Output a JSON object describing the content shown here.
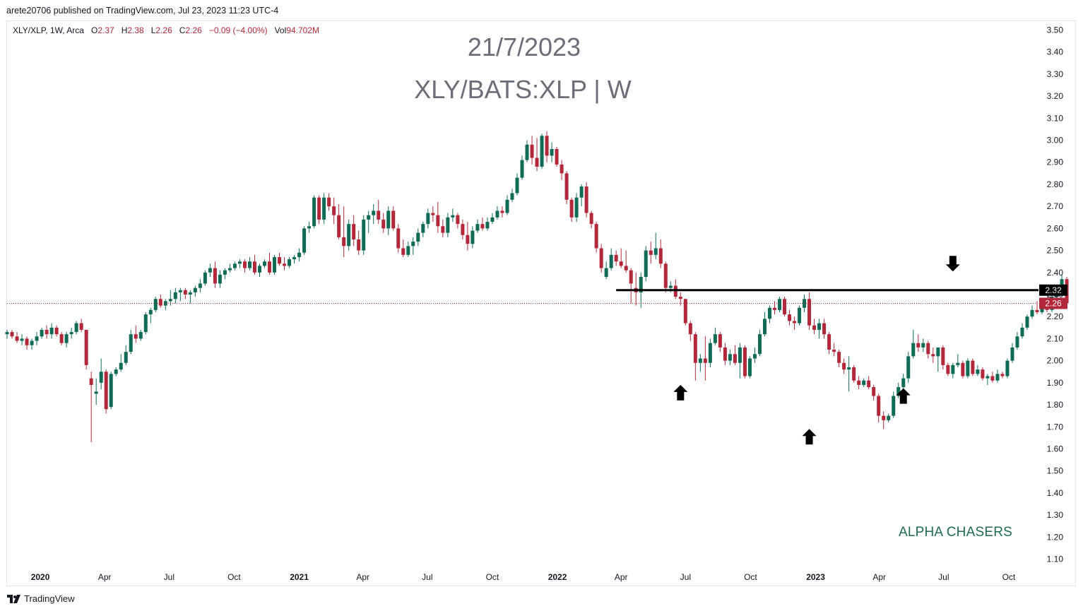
{
  "publisher_line": "arete20706 published on TradingView.com, Jul 23, 2023 11:23 UTC-4",
  "legend": {
    "symbol": "XLY/XLP, 1W, Arca",
    "o_label": "O",
    "o_value": "2.37",
    "h_label": "H",
    "h_value": "2.38",
    "l_label": "L",
    "l_value": "2.26",
    "c_label": "C",
    "c_value": "2.26",
    "change": "−0.09 (−4.00%)",
    "vol_label": "Vol",
    "vol_value": "94.702M"
  },
  "watermark": {
    "date": "21/7/2023",
    "title": "XLY/BATS:XLP | W"
  },
  "annotation_text": "ALPHA CHASERS",
  "footer": {
    "brand": "TradingView",
    "logo_icon": "tradingview-logo-icon"
  },
  "colors": {
    "up": "#0f6b56",
    "down": "#b2283a",
    "axis_text": "#131722",
    "level_line": "#000000"
  },
  "chart_data": {
    "type": "candlestick",
    "interval": "1W",
    "y_axis": {
      "ticks": [
        "1.10",
        "1.20",
        "1.30",
        "1.40",
        "1.50",
        "1.60",
        "1.70",
        "1.80",
        "1.90",
        "2.00",
        "2.10",
        "2.20",
        "2.30",
        "2.40",
        "2.50",
        "2.60",
        "2.70",
        "2.80",
        "2.90",
        "3.00",
        "3.10",
        "3.20",
        "3.30",
        "3.40",
        "3.50"
      ],
      "range": [
        1.06,
        3.54
      ],
      "position": "right"
    },
    "x_axis": {
      "range": [
        "2019-11-15",
        "2023-11-10"
      ],
      "ticks": [
        {
          "label": "2020",
          "date": "2020-01-01",
          "bold": true
        },
        {
          "label": "Apr",
          "date": "2020-04-01",
          "bold": false
        },
        {
          "label": "Jul",
          "date": "2020-07-01",
          "bold": false
        },
        {
          "label": "Oct",
          "date": "2020-10-01",
          "bold": false
        },
        {
          "label": "2021",
          "date": "2021-01-01",
          "bold": true
        },
        {
          "label": "Apr",
          "date": "2021-04-01",
          "bold": false
        },
        {
          "label": "Jul",
          "date": "2021-07-01",
          "bold": false
        },
        {
          "label": "Oct",
          "date": "2021-10-01",
          "bold": false
        },
        {
          "label": "2022",
          "date": "2022-01-01",
          "bold": true
        },
        {
          "label": "Apr",
          "date": "2022-04-01",
          "bold": false
        },
        {
          "label": "Jul",
          "date": "2022-07-01",
          "bold": false
        },
        {
          "label": "Oct",
          "date": "2022-10-01",
          "bold": false
        },
        {
          "label": "2023",
          "date": "2023-01-01",
          "bold": true
        },
        {
          "label": "Apr",
          "date": "2023-04-01",
          "bold": false
        },
        {
          "label": "Jul",
          "date": "2023-07-01",
          "bold": false
        },
        {
          "label": "Oct",
          "date": "2023-10-01",
          "bold": false
        }
      ]
    },
    "start_week": "2019-11-15",
    "candles": [
      [
        2.12,
        2.14,
        2.1,
        2.13
      ],
      [
        2.13,
        2.14,
        2.1,
        2.11
      ],
      [
        2.11,
        2.13,
        2.08,
        2.09
      ],
      [
        2.09,
        2.12,
        2.07,
        2.1
      ],
      [
        2.1,
        2.11,
        2.05,
        2.07
      ],
      [
        2.07,
        2.1,
        2.05,
        2.09
      ],
      [
        2.09,
        2.13,
        2.07,
        2.11
      ],
      [
        2.11,
        2.15,
        2.1,
        2.14
      ],
      [
        2.14,
        2.16,
        2.1,
        2.12
      ],
      [
        2.12,
        2.17,
        2.1,
        2.15
      ],
      [
        2.15,
        2.16,
        2.11,
        2.12
      ],
      [
        2.12,
        2.13,
        2.07,
        2.08
      ],
      [
        2.08,
        2.13,
        2.06,
        2.12
      ],
      [
        2.12,
        2.15,
        2.1,
        2.13
      ],
      [
        2.13,
        2.18,
        2.12,
        2.17
      ],
      [
        2.17,
        2.19,
        2.13,
        2.14
      ],
      [
        2.14,
        2.14,
        1.96,
        1.98
      ],
      [
        1.92,
        1.95,
        1.63,
        1.89
      ],
      [
        1.85,
        1.92,
        1.8,
        1.86
      ],
      [
        1.9,
        2.01,
        1.87,
        1.95
      ],
      [
        1.95,
        1.96,
        1.76,
        1.78
      ],
      [
        1.79,
        1.95,
        1.78,
        1.94
      ],
      [
        1.94,
        1.97,
        1.93,
        1.96
      ],
      [
        1.96,
        2.03,
        1.95,
        1.99
      ],
      [
        1.99,
        2.07,
        1.98,
        2.04
      ],
      [
        2.04,
        2.14,
        2.03,
        2.12
      ],
      [
        2.12,
        2.16,
        2.08,
        2.1
      ],
      [
        2.1,
        2.14,
        2.09,
        2.13
      ],
      [
        2.13,
        2.22,
        2.12,
        2.21
      ],
      [
        2.21,
        2.24,
        2.17,
        2.23
      ],
      [
        2.23,
        2.29,
        2.22,
        2.28
      ],
      [
        2.28,
        2.3,
        2.24,
        2.25
      ],
      [
        2.25,
        2.28,
        2.23,
        2.27
      ],
      [
        2.27,
        2.32,
        2.25,
        2.28
      ],
      [
        2.28,
        2.33,
        2.26,
        2.31
      ],
      [
        2.31,
        2.33,
        2.27,
        2.32
      ],
      [
        2.32,
        2.33,
        2.28,
        2.3
      ],
      [
        2.3,
        2.32,
        2.26,
        2.31
      ],
      [
        2.31,
        2.34,
        2.29,
        2.33
      ],
      [
        2.33,
        2.37,
        2.31,
        2.35
      ],
      [
        2.35,
        2.41,
        2.34,
        2.4
      ],
      [
        2.4,
        2.44,
        2.38,
        2.42
      ],
      [
        2.42,
        2.45,
        2.33,
        2.35
      ],
      [
        2.35,
        2.41,
        2.33,
        2.39
      ],
      [
        2.39,
        2.42,
        2.37,
        2.41
      ],
      [
        2.41,
        2.44,
        2.4,
        2.42
      ],
      [
        2.42,
        2.45,
        2.41,
        2.44
      ],
      [
        2.44,
        2.46,
        2.42,
        2.45
      ],
      [
        2.45,
        2.46,
        2.4,
        2.42
      ],
      [
        2.42,
        2.47,
        2.41,
        2.45
      ],
      [
        2.45,
        2.48,
        2.39,
        2.4
      ],
      [
        2.4,
        2.44,
        2.38,
        2.43
      ],
      [
        2.43,
        2.46,
        2.42,
        2.45
      ],
      [
        2.45,
        2.49,
        2.39,
        2.4
      ],
      [
        2.4,
        2.48,
        2.39,
        2.47
      ],
      [
        2.47,
        2.49,
        2.43,
        2.44
      ],
      [
        2.44,
        2.47,
        2.41,
        2.43
      ],
      [
        2.43,
        2.47,
        2.42,
        2.46
      ],
      [
        2.46,
        2.48,
        2.44,
        2.47
      ],
      [
        2.47,
        2.51,
        2.45,
        2.49
      ],
      [
        2.49,
        2.61,
        2.48,
        2.6
      ],
      [
        2.6,
        2.63,
        2.58,
        2.61
      ],
      [
        2.61,
        2.75,
        2.6,
        2.74
      ],
      [
        2.74,
        2.75,
        2.62,
        2.64
      ],
      [
        2.64,
        2.76,
        2.62,
        2.74
      ],
      [
        2.74,
        2.76,
        2.68,
        2.7
      ],
      [
        2.7,
        2.74,
        2.62,
        2.66
      ],
      [
        2.66,
        2.71,
        2.55,
        2.56
      ],
      [
        2.56,
        2.7,
        2.47,
        2.52
      ],
      [
        2.52,
        2.64,
        2.5,
        2.62
      ],
      [
        2.62,
        2.66,
        2.52,
        2.55
      ],
      [
        2.55,
        2.59,
        2.48,
        2.5
      ],
      [
        2.5,
        2.66,
        2.48,
        2.64
      ],
      [
        2.64,
        2.68,
        2.58,
        2.66
      ],
      [
        2.66,
        2.71,
        2.62,
        2.68
      ],
      [
        2.68,
        2.73,
        2.62,
        2.64
      ],
      [
        2.64,
        2.67,
        2.58,
        2.6
      ],
      [
        2.6,
        2.7,
        2.57,
        2.68
      ],
      [
        2.68,
        2.7,
        2.59,
        2.6
      ],
      [
        2.6,
        2.62,
        2.49,
        2.51
      ],
      [
        2.51,
        2.55,
        2.47,
        2.48
      ],
      [
        2.48,
        2.54,
        2.47,
        2.52
      ],
      [
        2.52,
        2.56,
        2.48,
        2.54
      ],
      [
        2.54,
        2.6,
        2.52,
        2.58
      ],
      [
        2.58,
        2.63,
        2.56,
        2.62
      ],
      [
        2.62,
        2.69,
        2.6,
        2.67
      ],
      [
        2.67,
        2.7,
        2.63,
        2.66
      ],
      [
        2.66,
        2.72,
        2.58,
        2.61
      ],
      [
        2.61,
        2.64,
        2.56,
        2.58
      ],
      [
        2.58,
        2.67,
        2.56,
        2.65
      ],
      [
        2.65,
        2.69,
        2.63,
        2.66
      ],
      [
        2.66,
        2.67,
        2.6,
        2.62
      ],
      [
        2.62,
        2.64,
        2.55,
        2.57
      ],
      [
        2.57,
        2.63,
        2.5,
        2.53
      ],
      [
        2.53,
        2.61,
        2.51,
        2.59
      ],
      [
        2.59,
        2.64,
        2.58,
        2.62
      ],
      [
        2.62,
        2.65,
        2.59,
        2.6
      ],
      [
        2.6,
        2.65,
        2.59,
        2.63
      ],
      [
        2.63,
        2.67,
        2.62,
        2.65
      ],
      [
        2.65,
        2.7,
        2.64,
        2.68
      ],
      [
        2.68,
        2.7,
        2.65,
        2.67
      ],
      [
        2.67,
        2.75,
        2.66,
        2.73
      ],
      [
        2.73,
        2.78,
        2.72,
        2.76
      ],
      [
        2.76,
        2.85,
        2.75,
        2.83
      ],
      [
        2.83,
        2.93,
        2.82,
        2.91
      ],
      [
        2.91,
        3.0,
        2.9,
        2.98
      ],
      [
        2.98,
        3.02,
        2.89,
        2.92
      ],
      [
        2.92,
        3.01,
        2.86,
        2.88
      ],
      [
        2.88,
        3.03,
        2.87,
        3.02
      ],
      [
        3.02,
        3.04,
        2.9,
        2.93
      ],
      [
        2.93,
        2.99,
        2.9,
        2.96
      ],
      [
        2.96,
        2.97,
        2.88,
        2.89
      ],
      [
        2.89,
        2.91,
        2.82,
        2.85
      ],
      [
        2.85,
        2.86,
        2.71,
        2.73
      ],
      [
        2.73,
        2.74,
        2.63,
        2.65
      ],
      [
        2.65,
        2.76,
        2.63,
        2.74
      ],
      [
        2.74,
        2.8,
        2.7,
        2.79
      ],
      [
        2.79,
        2.81,
        2.65,
        2.67
      ],
      [
        2.67,
        2.68,
        2.6,
        2.62
      ],
      [
        2.62,
        2.63,
        2.49,
        2.51
      ],
      [
        2.51,
        2.53,
        2.4,
        2.42
      ],
      [
        2.38,
        2.45,
        2.37,
        2.42
      ],
      [
        2.42,
        2.51,
        2.41,
        2.48
      ],
      [
        2.48,
        2.5,
        2.43,
        2.45
      ],
      [
        2.45,
        2.51,
        2.42,
        2.43
      ],
      [
        2.43,
        2.5,
        2.4,
        2.41
      ],
      [
        2.41,
        2.42,
        2.26,
        2.35
      ],
      [
        2.33,
        2.4,
        2.25,
        2.31
      ],
      [
        2.31,
        2.4,
        2.24,
        2.38
      ],
      [
        2.38,
        2.52,
        2.36,
        2.5
      ],
      [
        2.5,
        2.54,
        2.44,
        2.48
      ],
      [
        2.48,
        2.58,
        2.46,
        2.51
      ],
      [
        2.51,
        2.55,
        2.42,
        2.44
      ],
      [
        2.44,
        2.45,
        2.31,
        2.33
      ],
      [
        2.33,
        2.36,
        2.31,
        2.34
      ],
      [
        2.34,
        2.37,
        2.28,
        2.29
      ],
      [
        2.29,
        2.31,
        2.25,
        2.28
      ],
      [
        2.28,
        2.28,
        2.16,
        2.17
      ],
      [
        2.17,
        2.18,
        2.09,
        2.12
      ],
      [
        2.12,
        2.13,
        1.91,
        1.99
      ],
      [
        1.99,
        2.03,
        1.95,
        2.01
      ],
      [
        2.01,
        2.11,
        1.91,
        1.99
      ],
      [
        1.99,
        2.1,
        1.97,
        2.08
      ],
      [
        2.08,
        2.15,
        2.07,
        2.12
      ],
      [
        2.12,
        2.13,
        2.04,
        2.06
      ],
      [
        2.06,
        2.08,
        1.98,
        2.0
      ],
      [
        2.0,
        2.05,
        1.98,
        2.03
      ],
      [
        2.03,
        2.07,
        1.98,
        1.99
      ],
      [
        1.99,
        2.08,
        1.92,
        2.06
      ],
      [
        2.06,
        2.07,
        1.92,
        1.93
      ],
      [
        1.93,
        2.02,
        1.92,
        2.01
      ],
      [
        2.01,
        2.06,
        1.99,
        2.03
      ],
      [
        2.03,
        2.14,
        2.02,
        2.12
      ],
      [
        2.12,
        2.22,
        2.11,
        2.19
      ],
      [
        2.19,
        2.25,
        2.17,
        2.24
      ],
      [
        2.24,
        2.27,
        2.21,
        2.23
      ],
      [
        2.23,
        2.29,
        2.22,
        2.28
      ],
      [
        2.28,
        2.29,
        2.2,
        2.21
      ],
      [
        2.21,
        2.23,
        2.16,
        2.18
      ],
      [
        2.18,
        2.2,
        2.14,
        2.17
      ],
      [
        2.17,
        2.25,
        2.16,
        2.24
      ],
      [
        2.24,
        2.3,
        2.22,
        2.28
      ],
      [
        2.28,
        2.31,
        2.14,
        2.16
      ],
      [
        2.16,
        2.19,
        2.12,
        2.14
      ],
      [
        2.14,
        2.19,
        2.1,
        2.17
      ],
      [
        2.17,
        2.19,
        2.1,
        2.12
      ],
      [
        2.12,
        2.13,
        2.03,
        2.05
      ],
      [
        2.05,
        2.08,
        2.02,
        2.04
      ],
      [
        2.04,
        2.05,
        1.97,
        1.99
      ],
      [
        1.99,
        2.01,
        1.94,
        1.96
      ],
      [
        1.96,
        2.02,
        1.86,
        1.97
      ],
      [
        1.97,
        1.98,
        1.9,
        1.91
      ],
      [
        1.91,
        1.93,
        1.87,
        1.89
      ],
      [
        1.89,
        1.92,
        1.88,
        1.91
      ],
      [
        1.91,
        1.93,
        1.87,
        1.88
      ],
      [
        1.88,
        1.89,
        1.82,
        1.84
      ],
      [
        1.84,
        1.85,
        1.72,
        1.75
      ],
      [
        1.75,
        1.77,
        1.69,
        1.73
      ],
      [
        1.73,
        1.76,
        1.72,
        1.75
      ],
      [
        1.75,
        1.86,
        1.74,
        1.84
      ],
      [
        1.84,
        1.9,
        1.83,
        1.88
      ],
      [
        1.88,
        1.94,
        1.86,
        1.92
      ],
      [
        1.92,
        2.04,
        1.9,
        2.02
      ],
      [
        2.02,
        2.14,
        2.01,
        2.08
      ],
      [
        2.08,
        2.12,
        2.04,
        2.06
      ],
      [
        2.06,
        2.1,
        2.04,
        2.08
      ],
      [
        2.08,
        2.09,
        2.01,
        2.03
      ],
      [
        2.03,
        2.06,
        1.99,
        2.02
      ],
      [
        2.02,
        2.04,
        1.95,
        2.06
      ],
      [
        2.06,
        2.07,
        1.96,
        1.98
      ],
      [
        1.98,
        1.99,
        1.93,
        1.94
      ],
      [
        1.94,
        1.99,
        1.92,
        1.98
      ],
      [
        1.98,
        2.03,
        1.97,
        1.99
      ],
      [
        1.99,
        2.0,
        1.92,
        1.93
      ],
      [
        1.93,
        2.01,
        1.92,
        2.0
      ],
      [
        2.0,
        2.01,
        1.93,
        1.94
      ],
      [
        1.94,
        1.98,
        1.93,
        1.96
      ],
      [
        1.96,
        1.97,
        1.91,
        1.92
      ],
      [
        1.92,
        1.94,
        1.89,
        1.93
      ],
      [
        1.93,
        1.95,
        1.9,
        1.91
      ],
      [
        1.91,
        1.96,
        1.9,
        1.94
      ],
      [
        1.94,
        1.95,
        1.92,
        1.93
      ],
      [
        1.93,
        2.01,
        1.92,
        2.0
      ],
      [
        2.0,
        2.08,
        1.99,
        2.06
      ],
      [
        2.06,
        2.13,
        2.05,
        2.11
      ],
      [
        2.11,
        2.17,
        2.1,
        2.15
      ],
      [
        2.15,
        2.21,
        2.14,
        2.2
      ],
      [
        2.2,
        2.25,
        2.19,
        2.23
      ],
      [
        2.23,
        2.27,
        2.21,
        2.22
      ],
      [
        2.22,
        2.28,
        2.21,
        2.26
      ],
      [
        2.26,
        2.28,
        2.22,
        2.23
      ],
      [
        2.23,
        2.31,
        2.22,
        2.29
      ],
      [
        2.29,
        2.34,
        2.28,
        2.32
      ],
      [
        2.31,
        2.39,
        2.3,
        2.37
      ],
      [
        2.37,
        2.38,
        2.26,
        2.26
      ]
    ],
    "horizontal_levels": [
      {
        "price": 2.32,
        "label": "2.32",
        "from": "2022-03-25",
        "style": "solid"
      }
    ],
    "last_price": {
      "price": 2.26,
      "label": "2.26"
    },
    "markers": [
      {
        "type": "arrow-up",
        "date": "2022-06-24",
        "price": 1.855
      },
      {
        "type": "arrow-up",
        "date": "2022-12-23",
        "price": 1.655
      },
      {
        "type": "arrow-up",
        "date": "2023-05-05",
        "price": 1.84
      },
      {
        "type": "arrow-down",
        "date": "2023-07-14",
        "price": 2.44
      }
    ],
    "grid": false,
    "title": "21/7/2023",
    "subtitle": "XLY/BATS:XLP | W"
  }
}
